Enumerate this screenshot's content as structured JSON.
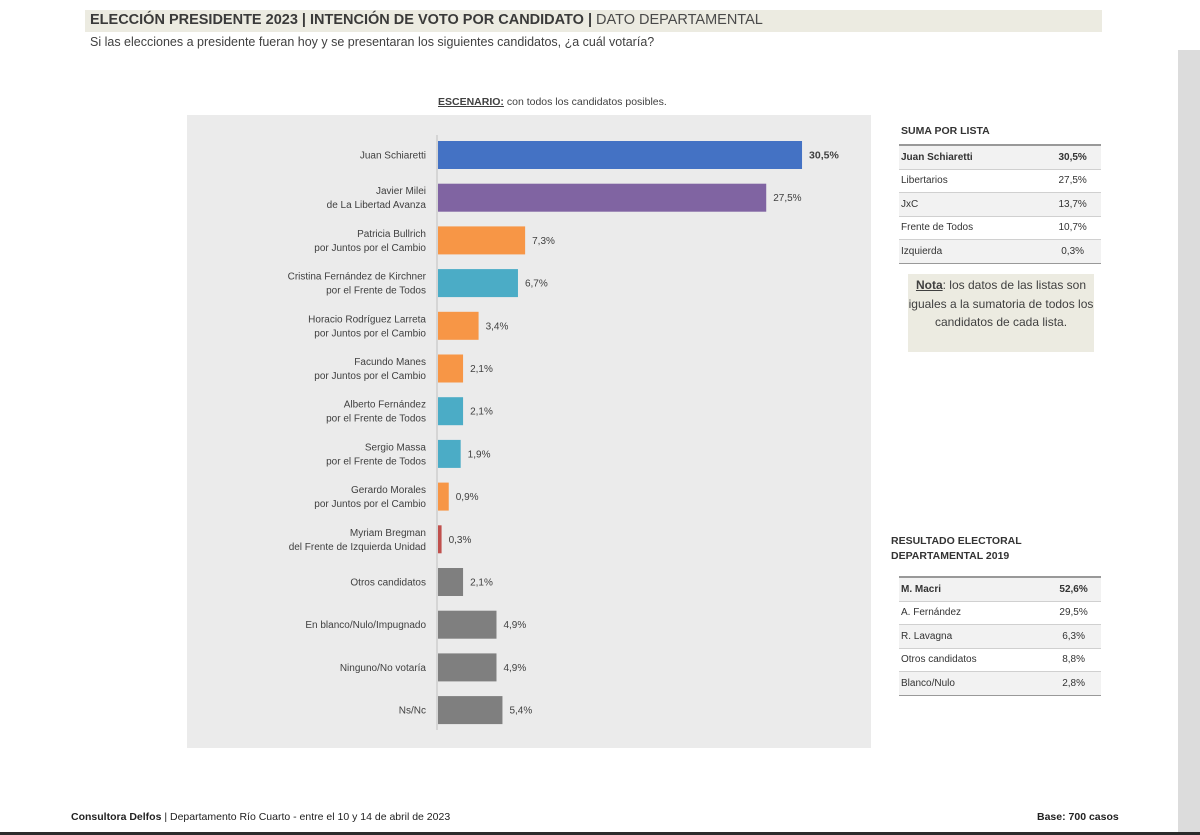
{
  "header": {
    "title_main": "ELECCIÓN PRESIDENTE 2023 | INTENCIÓN DE VOTO POR  CANDIDATO |",
    "title_dept": "DATO DEPARTAMENTAL",
    "subtitle": "Si las elecciones a presidente fueran hoy y se presentaran los siguientes candidatos, ¿a cuál votaría?"
  },
  "scenario": {
    "label": "ESCENARIO:",
    "text": "con todos los candidatos posibles."
  },
  "chart_data": {
    "type": "bar",
    "orientation": "horizontal",
    "title": "ESCENARIO: con todos los candidatos posibles.",
    "xlabel": "",
    "ylabel": "",
    "xlim": [
      0,
      31
    ],
    "categories": [
      [
        "Juan Schiaretti"
      ],
      [
        "Javier Milei",
        "de La Libertad Avanza"
      ],
      [
        "Patricia Bullrich",
        "por Juntos por el Cambio"
      ],
      [
        "Cristina Fernández de Kirchner",
        "por el Frente de Todos"
      ],
      [
        "Horacio Rodríguez Larreta",
        "por Juntos por el Cambio"
      ],
      [
        "Facundo Manes",
        "por Juntos por el Cambio"
      ],
      [
        "Alberto Fernández",
        "por el Frente de Todos"
      ],
      [
        "Sergio Massa",
        "por el Frente de Todos"
      ],
      [
        "Gerardo Morales",
        "por Juntos por el Cambio"
      ],
      [
        "Myriam Bregman",
        "del Frente de Izquierda Unidad"
      ],
      [
        "Otros candidatos"
      ],
      [
        "En blanco/Nulo/Impugnado"
      ],
      [
        "Ninguno/No votaría"
      ],
      [
        "Ns/Nc"
      ]
    ],
    "values": [
      30.5,
      27.5,
      7.3,
      6.7,
      3.4,
      2.1,
      2.1,
      1.9,
      0.9,
      0.3,
      2.1,
      4.9,
      4.9,
      5.4
    ],
    "value_labels": [
      "30,5%",
      "27,5%",
      "7,3%",
      "6,7%",
      "3,4%",
      "2,1%",
      "2,1%",
      "1,9%",
      "0,9%",
      "0,3%",
      "2,1%",
      "4,9%",
      "4,9%",
      "5,4%"
    ],
    "colors": [
      "#4472c4",
      "#8064a2",
      "#f79646",
      "#4bacc6",
      "#f79646",
      "#f79646",
      "#4bacc6",
      "#4bacc6",
      "#f79646",
      "#c0504d",
      "#7f7f7f",
      "#7f7f7f",
      "#7f7f7f",
      "#7f7f7f"
    ]
  },
  "suma_por_lista": {
    "title": "SUMA POR LISTA",
    "rows": [
      {
        "name": "Juan Schiaretti",
        "value": "30,5%"
      },
      {
        "name": "Libertarios",
        "value": "27,5%"
      },
      {
        "name": "JxC",
        "value": "13,7%"
      },
      {
        "name": "Frente de Todos",
        "value": "10,7%"
      },
      {
        "name": "Izquierda",
        "value": "0,3%"
      }
    ]
  },
  "note": {
    "label": "Nota",
    "text": ": los datos de las listas son iguales a la sumatoria de todos los candidatos de cada lista."
  },
  "resultado_2019": {
    "title_line1": "RESULTADO ELECTORAL",
    "title_line2": "DEPARTAMENTAL 2019",
    "rows": [
      {
        "name": "M. Macri",
        "value": "52,6%"
      },
      {
        "name": "A. Fernández",
        "value": "29,5%"
      },
      {
        "name": "R. Lavagna",
        "value": "6,3%"
      },
      {
        "name": "Otros candidatos",
        "value": "8,8%"
      },
      {
        "name": "Blanco/Nulo",
        "value": "2,8%"
      }
    ]
  },
  "footer": {
    "org": "Consultora Delfos",
    "details": " | Departamento Río Cuarto - entre el 10 y 14 de abril de 2023",
    "base": "Base: 700 casos"
  }
}
